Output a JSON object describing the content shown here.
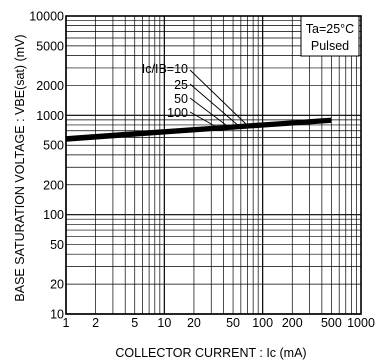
{
  "chart_data": {
    "type": "line",
    "title": "",
    "xlabel": "COLLECTOR CURRENT : Ic (mA)",
    "ylabel": "BASE SATURATION VOLTAGE : VBE(sat) (mV)",
    "x_scale": "log",
    "y_scale": "log",
    "xlim": [
      1,
      1000
    ],
    "ylim": [
      10,
      10000
    ],
    "grid": true,
    "x_ticks": [
      "1",
      "2",
      "5",
      "10",
      "20",
      "50",
      "100",
      "200",
      "500",
      "1000"
    ],
    "x_tick_values": [
      1,
      2,
      5,
      10,
      20,
      50,
      100,
      200,
      500,
      1000
    ],
    "y_ticks": [
      "10000",
      "5000",
      "2000",
      "1000",
      "500",
      "200",
      "100",
      "50",
      "20",
      "10"
    ],
    "y_tick_values": [
      10000,
      5000,
      2000,
      1000,
      500,
      200,
      100,
      50,
      20,
      10
    ],
    "conditions": {
      "line1": "Ta=25°C",
      "line2": "Pulsed"
    },
    "legend_labels": [
      "Ic/IB=10",
      "25",
      "50",
      "100"
    ],
    "series": [
      {
        "name": "Ic/IB=10",
        "x": [
          1,
          10,
          100,
          500
        ],
        "values": [
          600,
          705,
          825,
          920
        ]
      },
      {
        "name": "Ic/IB=25",
        "x": [
          1,
          10,
          100,
          500
        ],
        "values": [
          585,
          690,
          805,
          895
        ]
      },
      {
        "name": "Ic/IB=50",
        "x": [
          1,
          10,
          100,
          500
        ],
        "values": [
          570,
          675,
          790,
          880
        ]
      },
      {
        "name": "Ic/IB=100",
        "x": [
          1,
          10,
          100,
          500
        ],
        "values": [
          558,
          660,
          775,
          865
        ]
      }
    ],
    "colors": {
      "line": "#000000",
      "grid": "#000000",
      "background": "#ffffff"
    }
  }
}
